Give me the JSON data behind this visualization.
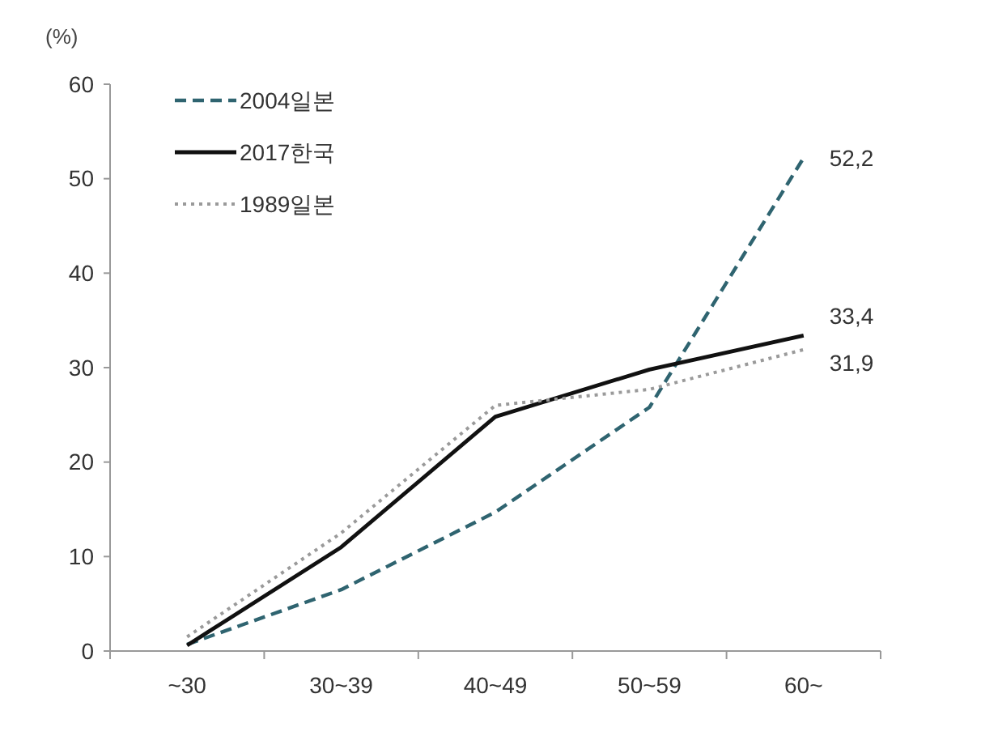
{
  "chart_data": {
    "type": "line",
    "ylabel": "(%)",
    "categories": [
      "~30",
      "30~39",
      "40~49",
      "50~59",
      "60~"
    ],
    "ylim": [
      0,
      60
    ],
    "yticks": [
      0,
      10,
      20,
      30,
      40,
      50,
      60
    ],
    "grid": false,
    "legend": "top left",
    "series": [
      {
        "name": "2004일본",
        "color": "#2f6470",
        "line_style": "dashed",
        "values": [
          0.7,
          6.5,
          14.7,
          25.8,
          52.2
        ],
        "value_labels": [
          null,
          null,
          null,
          null,
          "52,2"
        ]
      },
      {
        "name": "2017한국",
        "color": "#111111",
        "line_style": "solid",
        "values": [
          0.6,
          11,
          24.8,
          29.8,
          33.4
        ],
        "value_labels": [
          null,
          null,
          null,
          null,
          "33,4"
        ]
      },
      {
        "name": "1989일본",
        "color": "#9a9a9a",
        "line_style": "dotted",
        "values": [
          1.5,
          12.5,
          26,
          27.7,
          31.9
        ],
        "value_labels": [
          null,
          null,
          null,
          null,
          "31,9"
        ]
      }
    ]
  }
}
